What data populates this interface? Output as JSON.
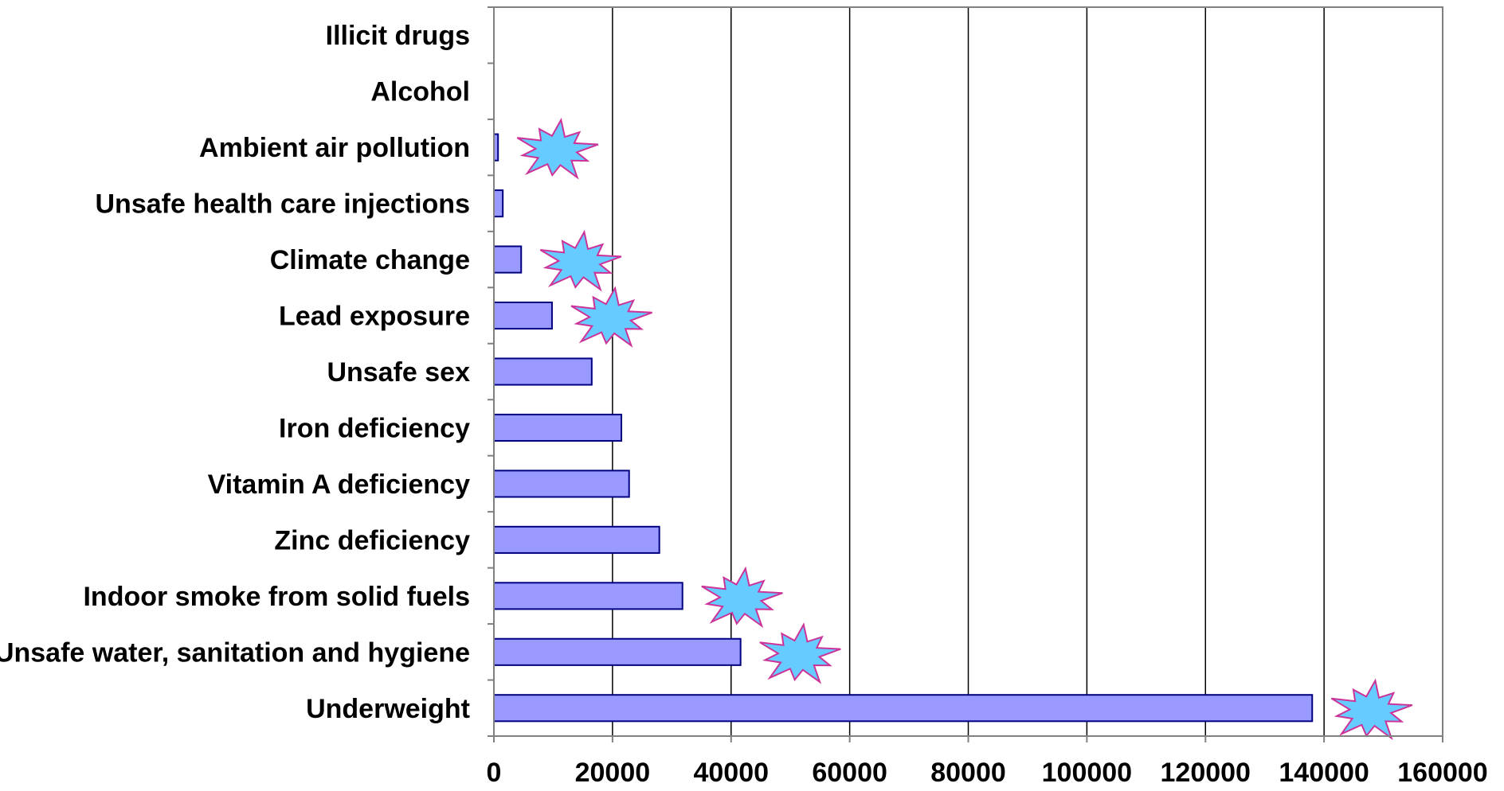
{
  "chart_data": {
    "type": "bar",
    "orientation": "horizontal",
    "categories": [
      "Illicit drugs",
      "Alcohol",
      "Ambient air pollution",
      "Unsafe health care injections",
      "Climate change",
      "Lead exposure",
      "Unsafe sex",
      "Iron deficiency",
      "Vitamin A deficiency",
      "Zinc deficiency",
      "Indoor smoke from solid fuels",
      "Unsafe water, sanitation and hygiene",
      "Underweight"
    ],
    "values": [
      0,
      0,
      700,
      1500,
      4600,
      9800,
      16500,
      21500,
      22800,
      27900,
      31800,
      41600,
      138000
    ],
    "highlighted": [
      false,
      false,
      true,
      false,
      true,
      true,
      false,
      false,
      false,
      false,
      true,
      true,
      true
    ],
    "xlim": [
      0,
      160000
    ],
    "xticks": [
      "0",
      "20000",
      "40000",
      "60000",
      "80000",
      "100000",
      "120000",
      "140000",
      "160000"
    ],
    "title": "",
    "xlabel": "",
    "ylabel": "",
    "grid": "vertical gridlines on",
    "legend": "none",
    "colors": {
      "bar_fill": "#9999FF",
      "bar_stroke": "#000080",
      "grid": "#000000",
      "axis": "#808080",
      "burst_fill": "#66CCFF",
      "burst_stroke": "#CC3399"
    }
  }
}
